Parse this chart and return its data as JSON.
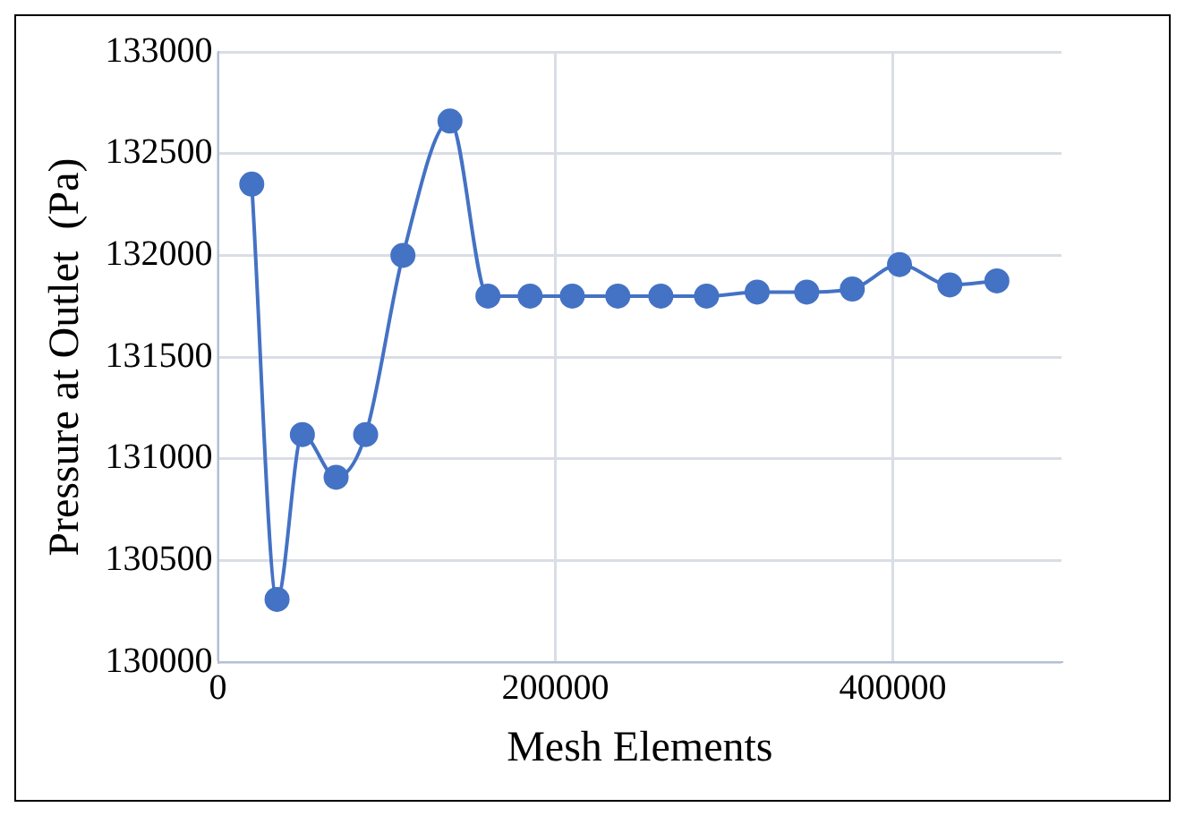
{
  "chart_data": {
    "type": "line",
    "xlabel": "Mesh Elements",
    "ylabel": "Pressure at Outlet  (Pa)",
    "x": [
      20000,
      35000,
      50000,
      70000,
      87500,
      109600,
      137500,
      160000,
      185000,
      210000,
      237000,
      262500,
      289600,
      319600,
      349000,
      376000,
      404000,
      433800,
      461700
    ],
    "series": [
      {
        "color": "#4472c4",
        "values": [
          132350,
          130310,
          131120,
          130910,
          131120,
          132000,
          132660,
          131800,
          131800,
          131800,
          131800,
          131800,
          131800,
          131820,
          131820,
          131835,
          131955,
          131855,
          131875
        ]
      }
    ],
    "xlim": [
      0,
      500000
    ],
    "xticks": [
      0,
      200000,
      400000
    ],
    "ylim": [
      130000,
      133000
    ],
    "yticks": [
      130000,
      130500,
      131000,
      131500,
      132000,
      132500,
      133000
    ],
    "grid": true,
    "legend": false,
    "marker": "circle",
    "line_style": "solid"
  }
}
